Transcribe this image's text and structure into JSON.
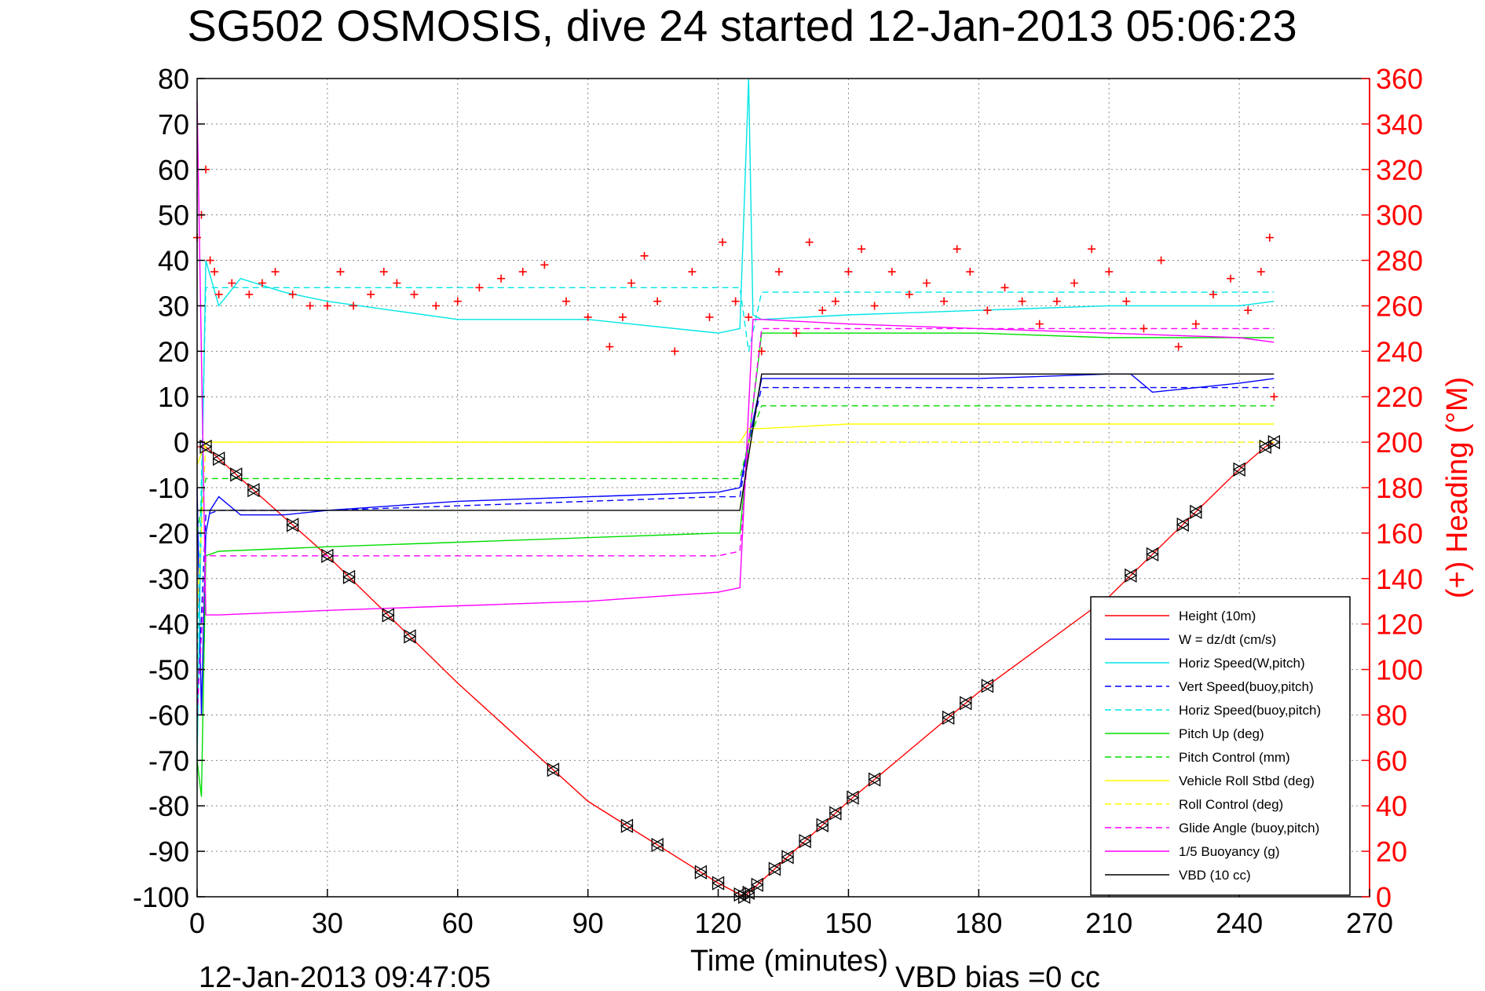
{
  "chart_data": {
    "type": "line",
    "title": "SG502 OSMOSIS, dive 24 started 12-Jan-2013 05:06:23",
    "xlabel": "Time (minutes)",
    "ylabel_right": "(+) Heading (°M)",
    "footer_left": "12-Jan-2013 09:47:05",
    "footer_right": "VBD bias =0 cc",
    "xlim": [
      0,
      270
    ],
    "ylim": [
      -100,
      80
    ],
    "ylim_right": [
      0,
      360
    ],
    "x_ticks": [
      "0",
      "30",
      "60",
      "90",
      "120",
      "150",
      "180",
      "210",
      "240",
      "270"
    ],
    "y_ticks": [
      "80",
      "70",
      "60",
      "50",
      "40",
      "30",
      "20",
      "10",
      "0",
      "-10",
      "-20",
      "-30",
      "-40",
      "-50",
      "-60",
      "-70",
      "-80",
      "-90",
      "-100"
    ],
    "y_right_ticks": [
      "360",
      "340",
      "320",
      "300",
      "280",
      "260",
      "240",
      "220",
      "200",
      "180",
      "160",
      "140",
      "120",
      "100",
      "80",
      "60",
      "40",
      "20",
      "0"
    ],
    "grid": true,
    "legend_position": "bottom-right",
    "series": [
      {
        "name": "Height (10m)",
        "color": "#ff0000",
        "style": "solid",
        "x": [
          0,
          2,
          10,
          30,
          60,
          90,
          120,
          126,
          150,
          180,
          210,
          240,
          246,
          248
        ],
        "y": [
          -1,
          -1,
          -8,
          -25,
          -53,
          -79,
          -97,
          -100,
          -79,
          -55,
          -34,
          -6,
          -1,
          0
        ]
      },
      {
        "name": "W = dz/dt (cm/s)",
        "color": "#0000ff",
        "style": "solid",
        "x": [
          0,
          1,
          2,
          3,
          5,
          10,
          20,
          30,
          60,
          90,
          120,
          125,
          127,
          130,
          150,
          180,
          210,
          215,
          220,
          240,
          248
        ],
        "y": [
          -10,
          -60,
          -20,
          -15,
          -12,
          -16,
          -16,
          -15,
          -13,
          -12,
          -11,
          -10,
          0,
          14,
          14,
          14,
          15,
          15,
          11,
          13,
          14
        ]
      },
      {
        "name": "Horiz Speed(W,pitch)",
        "color": "#00e5e5",
        "style": "solid",
        "x": [
          0,
          2,
          5,
          10,
          20,
          30,
          60,
          90,
          120,
          125,
          127,
          128,
          130,
          150,
          180,
          210,
          240,
          248
        ],
        "y": [
          -70,
          40,
          30,
          36,
          33,
          31,
          27,
          27,
          24,
          25,
          80,
          28,
          27,
          28,
          29,
          30,
          30,
          31
        ]
      },
      {
        "name": "Vert Speed(buoy,pitch)",
        "color": "#0000ff",
        "style": "dashed",
        "x": [
          0,
          2,
          5,
          30,
          60,
          90,
          120,
          125,
          127,
          130,
          150,
          180,
          210,
          240,
          248
        ],
        "y": [
          -60,
          -16,
          -15,
          -15,
          -14,
          -13,
          -12,
          -12,
          0,
          12,
          12,
          12,
          12,
          12,
          12
        ]
      },
      {
        "name": "Horiz Speed(buoy,pitch)",
        "color": "#00e5e5",
        "style": "dashed",
        "x": [
          0,
          2,
          5,
          30,
          60,
          90,
          120,
          125,
          127,
          130,
          150,
          180,
          210,
          240,
          248
        ],
        "y": [
          -50,
          34,
          34,
          34,
          34,
          34,
          34,
          34,
          20,
          33,
          33,
          33,
          33,
          33,
          33
        ]
      },
      {
        "name": "Pitch Up (deg)",
        "color": "#00dd00",
        "style": "solid",
        "x": [
          0,
          1,
          2,
          5,
          30,
          60,
          90,
          120,
          125,
          127,
          130,
          150,
          180,
          210,
          240,
          248
        ],
        "y": [
          -70,
          -78,
          -25,
          -24,
          -23,
          -22,
          -21,
          -20,
          -20,
          0,
          24,
          24,
          24,
          23,
          23,
          23
        ]
      },
      {
        "name": "Pitch Control (mm)",
        "color": "#00dd00",
        "style": "dashed",
        "x": [
          0,
          2,
          5,
          30,
          60,
          90,
          120,
          125,
          127,
          130,
          150,
          180,
          210,
          240,
          248
        ],
        "y": [
          -20,
          -8,
          -8,
          -8,
          -8,
          -8,
          -8,
          -8,
          0,
          8,
          8,
          8,
          8,
          8,
          8
        ]
      },
      {
        "name": "Vehicle Roll Stbd (deg)",
        "color": "#ffff00",
        "style": "solid",
        "x": [
          0,
          2,
          5,
          10,
          30,
          60,
          90,
          120,
          125,
          127,
          130,
          150,
          180,
          210,
          240,
          248
        ],
        "y": [
          -5,
          0,
          0,
          0,
          0,
          0,
          0,
          0,
          0,
          3,
          3,
          4,
          4,
          4,
          4,
          4
        ]
      },
      {
        "name": "Roll Control (deg)",
        "color": "#ffff00",
        "style": "dashed",
        "x": [
          0,
          2,
          30,
          60,
          90,
          120,
          125,
          127,
          130,
          150,
          180,
          210,
          240,
          248
        ],
        "y": [
          -38,
          0,
          0,
          0,
          0,
          0,
          0,
          0,
          0,
          0,
          0,
          0,
          0,
          0
        ]
      },
      {
        "name": "Glide Angle (buoy,pitch)",
        "color": "#ff00ff",
        "style": "dashed",
        "x": [
          0,
          2,
          5,
          30,
          60,
          90,
          120,
          125,
          127,
          130,
          150,
          180,
          210,
          240,
          248
        ],
        "y": [
          -60,
          -25,
          -25,
          -25,
          -25,
          -25,
          -25,
          -24,
          0,
          25,
          25,
          25,
          25,
          25,
          25
        ]
      },
      {
        "name": "1/5 Buoyancy (g)",
        "color": "#ff00ff",
        "style": "solid",
        "x": [
          0,
          2,
          5,
          30,
          60,
          90,
          120,
          125,
          128,
          130,
          150,
          180,
          210,
          240,
          248
        ],
        "y": [
          75,
          -38,
          -38,
          -37,
          -36,
          -35,
          -33,
          -32,
          27,
          27,
          26,
          25,
          24,
          23,
          22
        ]
      },
      {
        "name": "VBD (10 cc)",
        "color": "#000000",
        "style": "solid",
        "x": [
          0,
          2,
          30,
          60,
          90,
          120,
          125,
          130,
          150,
          180,
          210,
          240,
          248
        ],
        "y": [
          -15,
          -15,
          -15,
          -15,
          -15,
          -15,
          -15,
          15,
          15,
          15,
          15,
          15,
          15
        ]
      }
    ],
    "heading_series": {
      "name": "(+) Heading",
      "color": "#ff0000",
      "marker": "+",
      "x": [
        0,
        1,
        2,
        3,
        4,
        5,
        8,
        12,
        15,
        18,
        22,
        26,
        30,
        33,
        36,
        40,
        43,
        46,
        50,
        55,
        60,
        65,
        70,
        75,
        80,
        85,
        90,
        95,
        98,
        100,
        103,
        106,
        110,
        114,
        118,
        121,
        124,
        127,
        130,
        134,
        138,
        141,
        144,
        147,
        150,
        153,
        156,
        160,
        164,
        168,
        172,
        175,
        178,
        182,
        186,
        190,
        194,
        198,
        202,
        206,
        210,
        214,
        218,
        222,
        226,
        230,
        234,
        238,
        242,
        245,
        247,
        248
      ],
      "y": [
        290,
        300,
        320,
        280,
        275,
        265,
        270,
        265,
        270,
        275,
        265,
        260,
        260,
        275,
        260,
        265,
        275,
        270,
        265,
        260,
        262,
        268,
        272,
        275,
        278,
        262,
        255,
        242,
        255,
        270,
        282,
        262,
        240,
        275,
        255,
        288,
        262,
        255,
        240,
        275,
        248,
        288,
        258,
        262,
        275,
        285,
        260,
        275,
        265,
        270,
        262,
        285,
        275,
        258,
        268,
        262,
        252,
        262,
        270,
        285,
        275,
        262,
        250,
        280,
        242,
        252,
        265,
        272,
        258,
        275,
        290,
        220
      ]
    },
    "triangle_markers": {
      "color": "#000000",
      "x": [
        2,
        5,
        9,
        13,
        22,
        30,
        35,
        44,
        49,
        82,
        99,
        106,
        116,
        120,
        125,
        126,
        127,
        129,
        133,
        136,
        140,
        144,
        147,
        151,
        156,
        173,
        177,
        182,
        208,
        215,
        220,
        227,
        230,
        240,
        246,
        248
      ]
    }
  }
}
